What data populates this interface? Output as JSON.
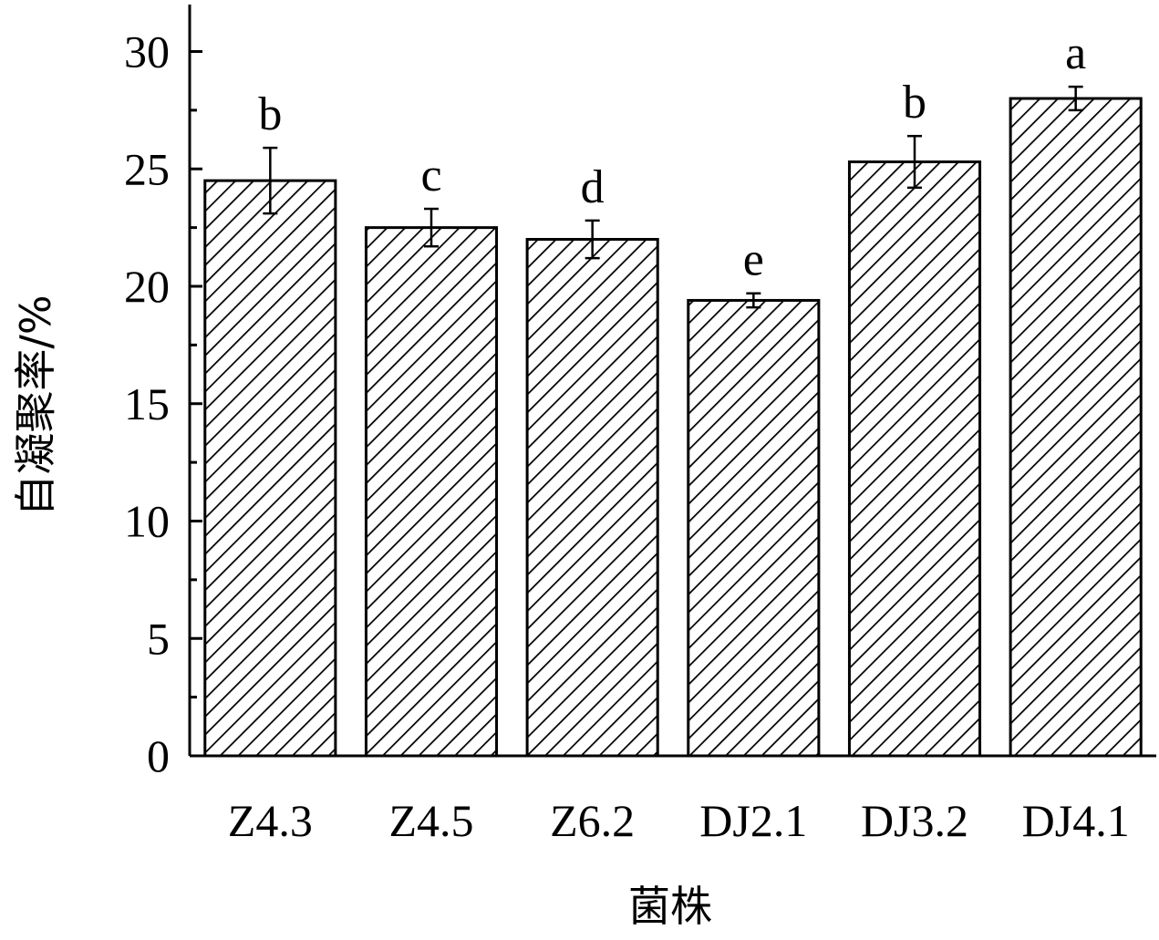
{
  "chart_data": {
    "type": "bar",
    "title": "",
    "xlabel": "菌株",
    "ylabel": "自凝聚率/%",
    "categories": [
      "Z4.3",
      "Z4.5",
      "Z6.2",
      "DJ2.1",
      "DJ3.2",
      "DJ4.1"
    ],
    "values": [
      24.5,
      22.5,
      22.0,
      19.4,
      25.3,
      28.0
    ],
    "errors": [
      1.4,
      0.8,
      0.8,
      0.3,
      1.1,
      0.5
    ],
    "significance": [
      "b",
      "c",
      "d",
      "e",
      "b",
      "a"
    ],
    "ylim": [
      0,
      32
    ],
    "yticks": [
      0,
      5,
      10,
      15,
      20,
      25,
      30
    ],
    "ytick_labels": [
      "0",
      "5",
      "10",
      "15",
      "20",
      "25",
      "30"
    ],
    "grid": false,
    "bar_fill": "diagonal-hatch",
    "colors": {
      "bar_stroke": "#000000",
      "hatch": "#000000",
      "background": "#ffffff"
    }
  }
}
